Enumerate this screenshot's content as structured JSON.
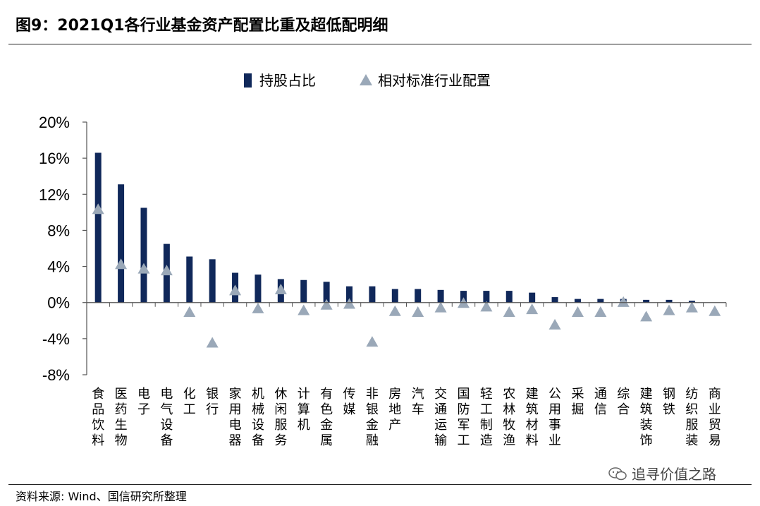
{
  "figure": {
    "title": "图9：2021Q1各行业基金资产配置比重及超低配明细",
    "source": "资料来源: Wind、国信研究所整理",
    "watermark": "追寻价值之路"
  },
  "chart_data": {
    "type": "bar",
    "legend_position": "top-center",
    "grid": false,
    "ylim": [
      -8,
      20
    ],
    "yticks": [
      "20%",
      "16%",
      "12%",
      "8%",
      "4%",
      "0%",
      "-4%",
      "-8%"
    ],
    "colors": {
      "bar": "#10285a",
      "marker": "#9aa8b8"
    },
    "categories": [
      "食品饮料",
      "医药生物",
      "电子",
      "电气设备",
      "化工",
      "银行",
      "家用电器",
      "机械设备",
      "休闲服务",
      "计算机",
      "有色金属",
      "传媒",
      "非银金融",
      "房地产",
      "汽车",
      "交通运输",
      "国防军工",
      "轻工制造",
      "农林牧渔",
      "建筑材料",
      "公用事业",
      "采掘",
      "通信",
      "综合",
      "建筑装饰",
      "钢铁",
      "纺织服装",
      "商业贸易"
    ],
    "series": [
      {
        "name": "持股占比",
        "kind": "bar",
        "values": [
          16.6,
          13.1,
          10.5,
          6.5,
          5.1,
          4.8,
          3.3,
          3.1,
          2.6,
          2.5,
          2.3,
          1.8,
          1.8,
          1.5,
          1.5,
          1.4,
          1.3,
          1.3,
          1.3,
          1.1,
          0.6,
          0.4,
          0.4,
          0.4,
          0.3,
          0.3,
          0.2,
          0.0
        ]
      },
      {
        "name": "相对标准行业配置",
        "kind": "triangle",
        "values": [
          10.4,
          4.3,
          3.8,
          3.6,
          -1.0,
          -4.4,
          1.4,
          -0.6,
          1.5,
          -0.8,
          -0.2,
          -0.1,
          -4.3,
          -0.9,
          -1.0,
          -0.5,
          0.0,
          -0.4,
          -1.0,
          -0.7,
          -2.4,
          -1.0,
          -1.0,
          0.1,
          -1.5,
          -0.8,
          -0.5,
          -0.9
        ]
      }
    ]
  }
}
